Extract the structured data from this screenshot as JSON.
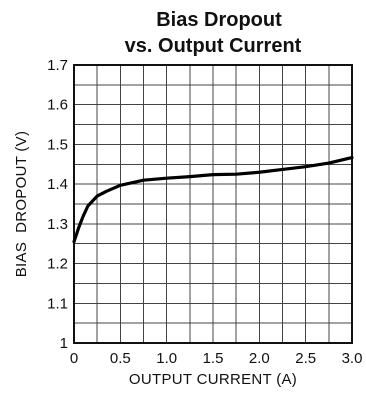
{
  "chart_data": {
    "type": "line",
    "title_line1": "Bias Dropout",
    "title_line2": "vs. Output Current",
    "xlabel": "OUTPUT CURRENT (A)",
    "ylabel": "BIAS  DROPOUT (V)",
    "xlim": [
      0,
      3.0
    ],
    "ylim": [
      1.0,
      1.7
    ],
    "grid": true,
    "x_tick_labels": [
      "0",
      "0.5",
      "1.0",
      "1.5",
      "2.0",
      "2.5",
      "3.0"
    ],
    "x_tick_values": [
      0,
      0.5,
      1.0,
      1.5,
      2.0,
      2.5,
      3.0
    ],
    "y_tick_labels": [
      "1",
      "1.1",
      "1.2",
      "1.3",
      "1.4",
      "1.5",
      "1.6",
      "1.7"
    ],
    "y_tick_values": [
      1.0,
      1.1,
      1.2,
      1.3,
      1.4,
      1.5,
      1.6,
      1.7
    ],
    "series": [
      {
        "x": [
          0,
          0.05,
          0.1,
          0.15,
          0.25,
          0.35,
          0.5,
          0.75,
          1.0,
          1.25,
          1.5,
          1.75,
          2.0,
          2.25,
          2.5,
          2.75,
          3.0
        ],
        "y": [
          1.255,
          1.29,
          1.32,
          1.345,
          1.37,
          1.382,
          1.397,
          1.41,
          1.415,
          1.419,
          1.424,
          1.425,
          1.43,
          1.437,
          1.444,
          1.453,
          1.467
        ]
      }
    ]
  }
}
